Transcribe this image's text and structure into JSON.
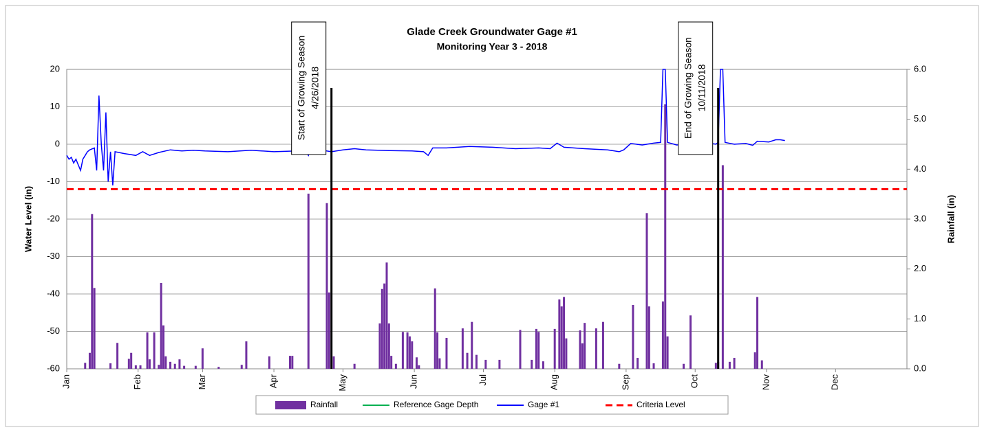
{
  "chart_data": {
    "type": "line",
    "title": "Glade Creek Groundwater Gage #1",
    "subtitle": "Monitoring Year 3 - 2018",
    "ylabel": "Water Level (in)",
    "y2label": "Rainfall (in)",
    "xlim": [
      0,
      365
    ],
    "xticks": [
      {
        "value": 0,
        "label": "Jan"
      },
      {
        "value": 31,
        "label": "Feb"
      },
      {
        "value": 59,
        "label": "Mar"
      },
      {
        "value": 90,
        "label": "Apr"
      },
      {
        "value": 120,
        "label": "May"
      },
      {
        "value": 151,
        "label": "Jun"
      },
      {
        "value": 181,
        "label": "Jul"
      },
      {
        "value": 212,
        "label": "Aug"
      },
      {
        "value": 243,
        "label": "Sep"
      },
      {
        "value": 273,
        "label": "Oct"
      },
      {
        "value": 304,
        "label": "Nov"
      },
      {
        "value": 334,
        "label": "Dec"
      }
    ],
    "ylim": [
      -60,
      20
    ],
    "yticks": [
      -60,
      -50,
      -40,
      -30,
      -20,
      -10,
      0,
      10,
      20
    ],
    "y2lim": [
      0,
      6
    ],
    "y2ticks": [
      {
        "value": 0,
        "label": "0.0"
      },
      {
        "value": 1,
        "label": "1.0"
      },
      {
        "value": 2,
        "label": "2.0"
      },
      {
        "value": 3,
        "label": "3.0"
      },
      {
        "value": 4,
        "label": "4.0"
      },
      {
        "value": 5,
        "label": "5.0"
      },
      {
        "value": 6,
        "label": "6.0"
      }
    ],
    "grid": true,
    "legend": "bottom",
    "series": [
      {
        "name": "Rainfall",
        "type": "bar",
        "axis": "y2",
        "color": "#7030a0",
        "x": [
          8,
          10,
          11,
          12,
          19,
          22,
          27,
          28,
          30,
          32,
          35,
          36,
          38,
          40,
          41,
          42,
          43,
          45,
          47,
          49,
          51,
          56,
          59,
          66,
          76,
          78,
          88,
          97,
          98,
          105,
          113,
          114,
          116,
          125,
          136,
          137,
          138,
          139,
          140,
          141,
          143,
          146,
          148,
          149,
          150,
          152,
          153,
          160,
          161,
          162,
          165,
          172,
          174,
          176,
          178,
          182,
          188,
          197,
          202,
          204,
          205,
          207,
          212,
          214,
          215,
          216,
          217,
          223,
          224,
          225,
          230,
          233,
          240,
          246,
          248,
          252,
          253,
          255,
          259,
          260,
          261,
          268,
          271,
          282,
          283,
          285,
          288,
          290,
          299,
          300,
          302
        ],
        "values": [
          0.12,
          0.32,
          3.1,
          1.62,
          0.11,
          0.52,
          0.2,
          0.32,
          0.07,
          0.07,
          0.73,
          0.19,
          0.73,
          0.08,
          1.72,
          0.87,
          0.25,
          0.14,
          0.1,
          0.19,
          0.06,
          0.06,
          0.41,
          0.04,
          0.08,
          0.55,
          0.25,
          0.26,
          0.26,
          3.51,
          3.32,
          1.53,
          0.25,
          0.1,
          0.91,
          1.6,
          1.71,
          2.13,
          0.91,
          0.26,
          0.1,
          0.74,
          0.73,
          0.65,
          0.55,
          0.23,
          0.07,
          1.61,
          0.73,
          0.21,
          0.62,
          0.81,
          0.32,
          0.94,
          0.28,
          0.18,
          0.18,
          0.78,
          0.18,
          0.8,
          0.74,
          0.15,
          0.8,
          1.39,
          1.25,
          1.44,
          0.61,
          0.77,
          0.51,
          0.92,
          0.81,
          0.94,
          0.1,
          1.28,
          0.22,
          3.12,
          1.25,
          0.11,
          1.35,
          5.3,
          0.65,
          0.1,
          1.07,
          0.12,
          0.14,
          4.08,
          0.14,
          0.22,
          0.33,
          1.44,
          0.17
        ]
      },
      {
        "name": "Reference Gage Depth",
        "color": "#00b050",
        "x": [],
        "values": []
      },
      {
        "name": "Gage #1",
        "color": "#0000ff",
        "x": [
          0,
          1,
          2,
          3,
          4,
          5,
          6,
          7,
          8,
          9,
          10,
          12,
          13,
          14,
          15,
          16,
          17,
          18,
          19,
          20,
          21,
          25,
          30,
          33,
          36,
          40,
          45,
          50,
          55,
          60,
          70,
          80,
          90,
          100,
          104,
          105,
          106,
          110,
          115,
          120,
          125,
          130,
          140,
          150,
          155,
          157,
          159,
          165,
          175,
          185,
          195,
          205,
          210,
          213,
          216,
          225,
          235,
          240,
          242,
          245,
          250,
          255,
          258,
          259,
          260,
          261,
          265,
          270,
          275,
          280,
          282,
          283,
          284,
          285,
          286,
          290,
          295,
          298,
          300,
          305,
          308,
          310,
          312
        ],
        "values": [
          -3,
          -4,
          -3.5,
          -5,
          -4,
          -5.5,
          -7,
          -4,
          -3,
          -2,
          -1.5,
          -1,
          -7,
          13,
          0,
          -7,
          8.5,
          -10,
          -2,
          -11,
          -2,
          -2.5,
          -3,
          -2,
          -3,
          -2.2,
          -1.5,
          -1.8,
          -1.6,
          -1.8,
          -2,
          -1.6,
          -2,
          -1.8,
          -2,
          -3,
          -1.5,
          -1.5,
          -2,
          -1.5,
          -1.2,
          -1.5,
          -1.7,
          -1.8,
          -2,
          -3,
          -1,
          -1,
          -0.6,
          -0.8,
          -1.2,
          -1,
          -1.2,
          0.3,
          -0.8,
          -1.2,
          -1.5,
          -2,
          -1.5,
          0.2,
          -0.2,
          0.3,
          0.5,
          20,
          20,
          0.5,
          -0.2,
          0,
          -0.5,
          0.2,
          0,
          0.5,
          20,
          20,
          0.5,
          0,
          0.2,
          -0.3,
          0.8,
          0.6,
          1.2,
          1.2,
          1
        ]
      },
      {
        "name": "Criteria Level",
        "color": "#ff0000",
        "dash": true,
        "x": [
          0,
          365
        ],
        "values": [
          -12,
          -12
        ]
      }
    ],
    "annotations": [
      {
        "x": 115,
        "text": [
          "Start of Growing Season",
          "4/26/2018"
        ]
      },
      {
        "x": 283,
        "text": [
          "End of Growing Season",
          "10/11/2018"
        ]
      }
    ]
  }
}
